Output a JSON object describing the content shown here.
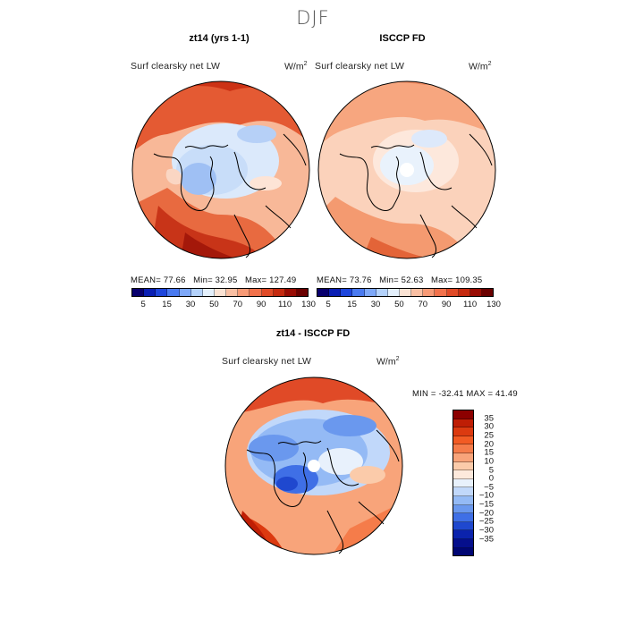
{
  "season": "DJF",
  "panels": {
    "model": {
      "title": "zt14 (yrs 1-1)",
      "variable": "Surf clearsky net LW",
      "units": "W/m",
      "units_sup": "2",
      "mean_label": "MEAN=",
      "mean": "77.66",
      "min_label": "Min=",
      "min": "32.95",
      "max_label": "Max=",
      "max": "127.49"
    },
    "obs": {
      "title": "ISCCP FD",
      "variable": "Surf clearsky net LW",
      "units": "W/m",
      "units_sup": "2",
      "mean_label": "MEAN=",
      "mean": "73.76",
      "min_label": "Min=",
      "min": "52.63",
      "max_label": "Max=",
      "max": "109.35"
    },
    "diff": {
      "title": "zt14 - ISCCP FD",
      "variable": "Surf clearsky net LW",
      "units": "W/m",
      "units_sup": "2",
      "minmax": "MIN = -32.41 MAX =  41.49"
    }
  },
  "abs_colorbar": {
    "colors": [
      "#08006e",
      "#0a1fb4",
      "#1e46dc",
      "#4a7af0",
      "#7ea8f8",
      "#b4d2fb",
      "#e4f0fc",
      "#fbe3d4",
      "#f9bfa3",
      "#f79a76",
      "#f2724c",
      "#e04a27",
      "#c52a10",
      "#990c04",
      "#6a0000"
    ],
    "ticks": [
      "5",
      "15",
      "30",
      "50",
      "70",
      "90",
      "110",
      "130"
    ]
  },
  "diff_colorbar": {
    "colors": [
      "#8c0000",
      "#bf1e05",
      "#dc3a10",
      "#f25b24",
      "#f57c4a",
      "#f8a47a",
      "#fbcbaa",
      "#fde9dc",
      "#e8f1fc",
      "#c1d8fa",
      "#94baf5",
      "#6a98ee",
      "#3f6fe6",
      "#1f48cf",
      "#0b23ad",
      "#050f8c",
      "#000673"
    ],
    "ticks": [
      "35",
      "30",
      "25",
      "20",
      "15",
      "10",
      "5",
      "0",
      "−5",
      "−10",
      "−15",
      "−20",
      "−25",
      "−30",
      "−35"
    ]
  }
}
